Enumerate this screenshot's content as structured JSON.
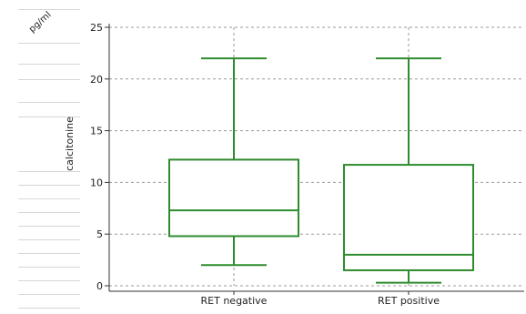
{
  "unit_label": "pg/ml",
  "chart_data": {
    "type": "box",
    "ylabel": "calcitonine",
    "ylim": [
      0,
      25
    ],
    "yticks": [
      0,
      5,
      10,
      15,
      20,
      25
    ],
    "grid": true,
    "categories": [
      "RET negative",
      "RET positive"
    ],
    "boxes": [
      {
        "min": 2,
        "q1": 4.8,
        "median": 7.3,
        "q3": 12.2,
        "max": 22
      },
      {
        "min": 0.3,
        "q1": 1.5,
        "median": 3.0,
        "q3": 11.7,
        "max": 22
      }
    ],
    "color": "#2e8b2e"
  }
}
